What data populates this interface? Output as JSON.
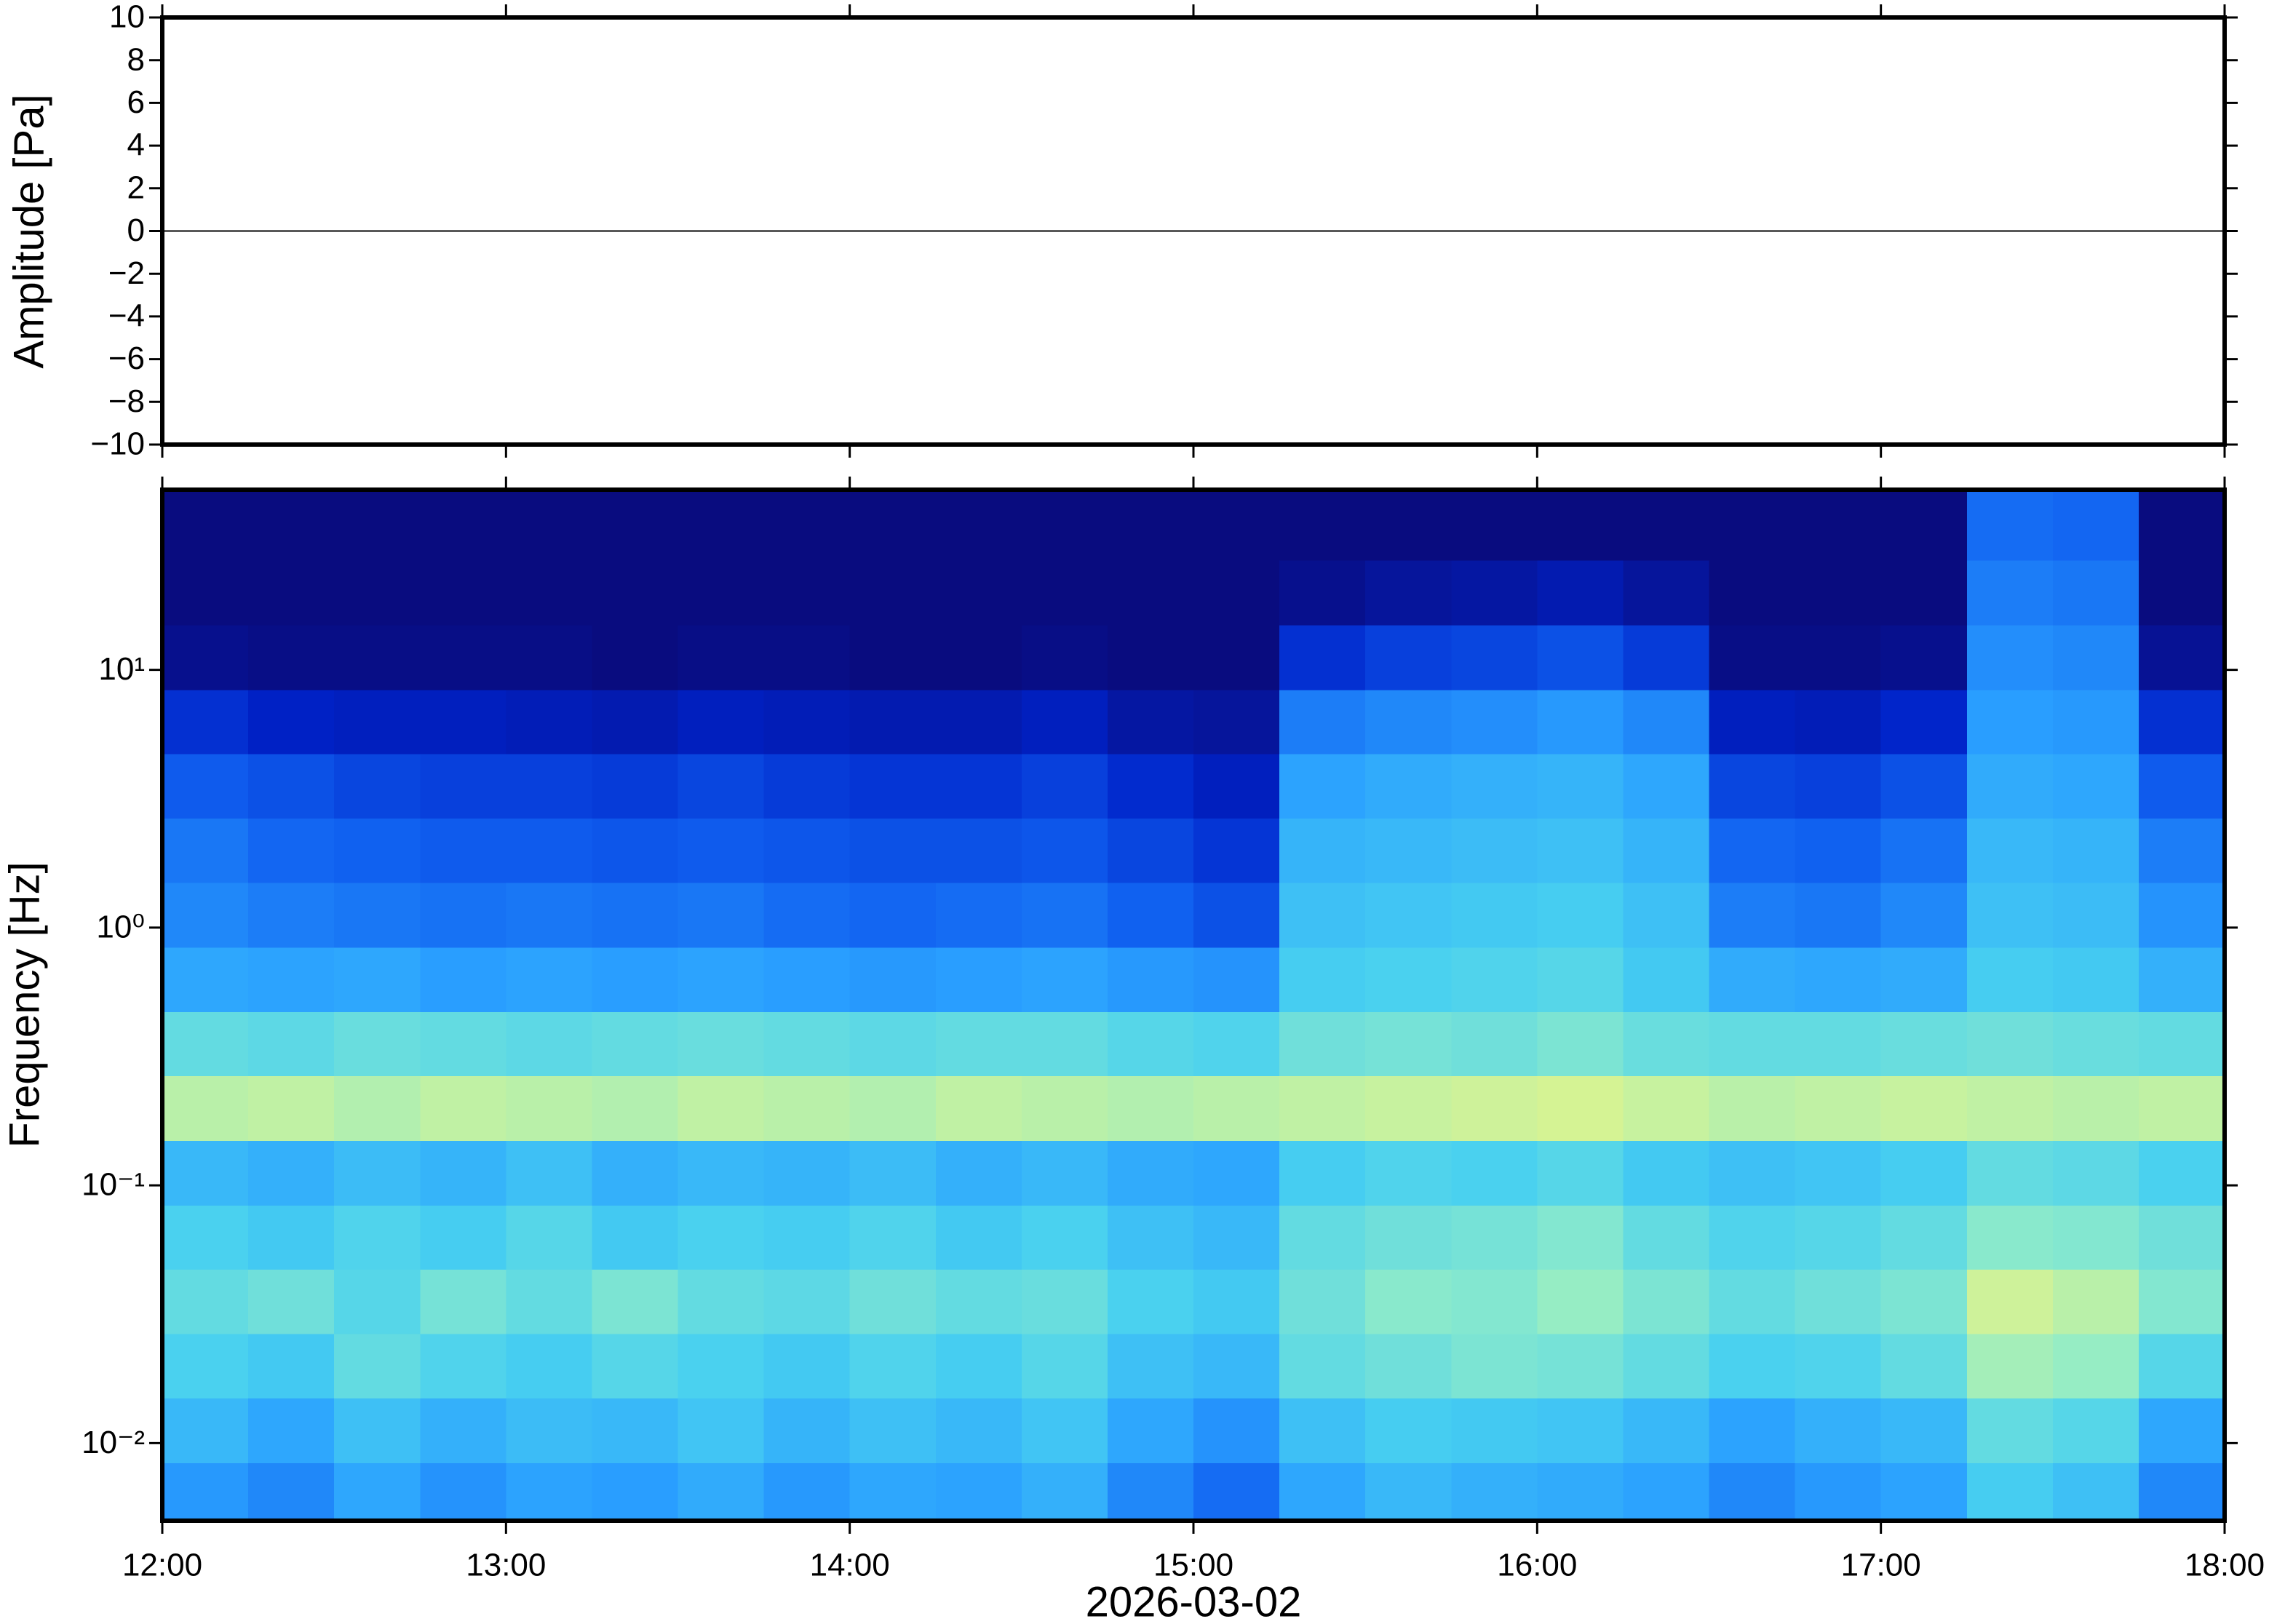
{
  "chart_data": [
    {
      "type": "line",
      "ylabel": "Amplitude [Pa]",
      "x": [
        12,
        12.25,
        12.5,
        12.75,
        13,
        13.25,
        13.5,
        13.75,
        14,
        14.25,
        14.5,
        14.75,
        15,
        15.25,
        15.5,
        15.75,
        16,
        16.25,
        16.5,
        16.75,
        17,
        17.25,
        17.5,
        17.75,
        18
      ],
      "values": [
        0,
        0,
        0,
        0,
        0,
        0,
        0,
        0,
        0,
        0,
        0,
        0,
        0,
        0,
        0,
        0,
        0,
        0,
        0,
        0,
        0,
        0,
        0,
        0,
        0
      ],
      "color": "#000000",
      "xlim": [
        12,
        18
      ],
      "xticks": [
        12,
        13,
        14,
        15,
        16,
        17,
        18
      ],
      "ylim": [
        -10,
        10
      ],
      "yticks": [
        {
          "value": -10,
          "label": "−10"
        },
        {
          "value": -8,
          "label": "−8"
        },
        {
          "value": -6,
          "label": "−6"
        },
        {
          "value": -4,
          "label": "−4"
        },
        {
          "value": -2,
          "label": "−2"
        },
        0,
        2,
        4,
        6,
        8,
        10
      ]
    },
    {
      "type": "heatmap",
      "ylabel": "Frequency [Hz]",
      "xlabel": "2026-03-02",
      "xlim": [
        12,
        18
      ],
      "xticks": [
        {
          "value": 12,
          "label": "12:00"
        },
        {
          "value": 13,
          "label": "13:00"
        },
        {
          "value": 14,
          "label": "14:00"
        },
        {
          "value": 15,
          "label": "15:00"
        },
        {
          "value": 16,
          "label": "16:00"
        },
        {
          "value": 17,
          "label": "17:00"
        },
        {
          "value": 18,
          "label": "18:00"
        }
      ],
      "ylim": [
        0.005,
        50
      ],
      "ylog": true,
      "yticks": [
        {
          "value": 0.01,
          "label": "10⁻²"
        },
        {
          "value": 0.1,
          "label": "10⁻¹"
        },
        {
          "value": 1,
          "label": "10⁰"
        },
        {
          "value": 10,
          "label": "10¹"
        }
      ],
      "x": [
        12.125,
        12.375,
        12.625,
        12.875,
        13.125,
        13.375,
        13.625,
        13.875,
        14.125,
        14.375,
        14.625,
        14.875,
        15.125,
        15.375,
        15.625,
        15.875,
        16.125,
        16.375,
        16.625,
        16.875,
        17.125,
        17.375,
        17.625,
        17.875
      ],
      "y": [
        0.0063,
        0.0112,
        0.02,
        0.0355,
        0.063,
        0.112,
        0.2,
        0.355,
        0.63,
        1.12,
        2,
        3.55,
        6.3,
        11.2,
        20,
        35.5
      ],
      "zlim": [
        0,
        0.8
      ],
      "colormap": [
        "#0a0a78",
        "#0022c8",
        "#1060f0",
        "#2aa0ff",
        "#48d0f0",
        "#90ecc8",
        "#e0f48c",
        "#f8d860"
      ],
      "z": [
        [
          0.33,
          0.3,
          0.36,
          0.32,
          0.35,
          0.34,
          0.37,
          0.33,
          0.36,
          0.35,
          0.38,
          0.3,
          0.25,
          0.36,
          0.4,
          0.38,
          0.37,
          0.35,
          0.3,
          0.33,
          0.35,
          0.45,
          0.42,
          0.3
        ],
        [
          0.4,
          0.36,
          0.42,
          0.38,
          0.41,
          0.4,
          0.43,
          0.39,
          0.42,
          0.4,
          0.43,
          0.36,
          0.32,
          0.42,
          0.45,
          0.44,
          0.43,
          0.4,
          0.35,
          0.38,
          0.4,
          0.5,
          0.48,
          0.36
        ],
        [
          0.46,
          0.44,
          0.5,
          0.47,
          0.45,
          0.48,
          0.46,
          0.44,
          0.47,
          0.45,
          0.48,
          0.42,
          0.4,
          0.5,
          0.52,
          0.54,
          0.53,
          0.5,
          0.46,
          0.47,
          0.5,
          0.6,
          0.58,
          0.48
        ],
        [
          0.5,
          0.52,
          0.48,
          0.53,
          0.5,
          0.54,
          0.5,
          0.49,
          0.52,
          0.5,
          0.51,
          0.46,
          0.44,
          0.52,
          0.56,
          0.55,
          0.58,
          0.54,
          0.5,
          0.52,
          0.54,
          0.66,
          0.63,
          0.55
        ],
        [
          0.46,
          0.44,
          0.47,
          0.45,
          0.48,
          0.44,
          0.46,
          0.45,
          0.47,
          0.44,
          0.46,
          0.42,
          0.4,
          0.5,
          0.52,
          0.53,
          0.55,
          0.5,
          0.47,
          0.48,
          0.5,
          0.56,
          0.55,
          0.52
        ],
        [
          0.4,
          0.38,
          0.41,
          0.39,
          0.42,
          0.38,
          0.4,
          0.39,
          0.41,
          0.38,
          0.4,
          0.37,
          0.36,
          0.45,
          0.47,
          0.46,
          0.48,
          0.44,
          0.42,
          0.43,
          0.45,
          0.5,
          0.49,
          0.46
        ],
        [
          0.63,
          0.64,
          0.62,
          0.64,
          0.63,
          0.62,
          0.64,
          0.63,
          0.62,
          0.64,
          0.63,
          0.62,
          0.63,
          0.64,
          0.65,
          0.66,
          0.67,
          0.65,
          0.63,
          0.64,
          0.65,
          0.64,
          0.63,
          0.64
        ],
        [
          0.5,
          0.49,
          0.51,
          0.5,
          0.49,
          0.5,
          0.51,
          0.5,
          0.49,
          0.5,
          0.5,
          0.48,
          0.47,
          0.52,
          0.53,
          0.52,
          0.54,
          0.51,
          0.5,
          0.5,
          0.51,
          0.52,
          0.51,
          0.5
        ],
        [
          0.36,
          0.35,
          0.36,
          0.34,
          0.35,
          0.34,
          0.35,
          0.34,
          0.33,
          0.34,
          0.35,
          0.33,
          0.32,
          0.45,
          0.46,
          0.47,
          0.48,
          0.44,
          0.37,
          0.36,
          0.37,
          0.45,
          0.44,
          0.38
        ],
        [
          0.3,
          0.28,
          0.27,
          0.26,
          0.27,
          0.26,
          0.27,
          0.25,
          0.24,
          0.25,
          0.26,
          0.23,
          0.2,
          0.42,
          0.43,
          0.44,
          0.45,
          0.42,
          0.28,
          0.27,
          0.3,
          0.42,
          0.41,
          0.32
        ],
        [
          0.27,
          0.24,
          0.23,
          0.22,
          0.22,
          0.21,
          0.22,
          0.21,
          0.2,
          0.2,
          0.21,
          0.18,
          0.15,
          0.39,
          0.4,
          0.41,
          0.42,
          0.39,
          0.24,
          0.23,
          0.26,
          0.4,
          0.39,
          0.28
        ],
        [
          0.22,
          0.2,
          0.18,
          0.17,
          0.17,
          0.16,
          0.18,
          0.16,
          0.15,
          0.15,
          0.17,
          0.13,
          0.1,
          0.35,
          0.37,
          0.38,
          0.39,
          0.36,
          0.18,
          0.17,
          0.2,
          0.37,
          0.36,
          0.22
        ],
        [
          0.14,
          0.11,
          0.1,
          0.1,
          0.09,
          0.08,
          0.1,
          0.09,
          0.08,
          0.08,
          0.1,
          0.06,
          0.05,
          0.28,
          0.3,
          0.31,
          0.33,
          0.3,
          0.1,
          0.09,
          0.12,
          0.34,
          0.33,
          0.14
        ],
        [
          0.03,
          0.02,
          0.02,
          0.02,
          0.02,
          0.01,
          0.02,
          0.02,
          0.01,
          0.01,
          0.02,
          0.01,
          0.01,
          0.14,
          0.17,
          0.18,
          0.2,
          0.16,
          0.02,
          0.02,
          0.03,
          0.31,
          0.3,
          0.04
        ],
        [
          0.01,
          0.01,
          0.01,
          0.01,
          0.01,
          0.01,
          0.01,
          0.01,
          0.01,
          0.01,
          0.01,
          0.01,
          0.01,
          0.03,
          0.05,
          0.06,
          0.08,
          0.05,
          0.01,
          0.01,
          0.01,
          0.28,
          0.27,
          0.01
        ],
        [
          0.01,
          0.01,
          0.01,
          0.01,
          0.01,
          0.01,
          0.01,
          0.01,
          0.01,
          0.01,
          0.01,
          0.01,
          0.01,
          0.01,
          0.01,
          0.01,
          0.01,
          0.01,
          0.01,
          0.01,
          0.01,
          0.25,
          0.24,
          0.01
        ]
      ]
    }
  ]
}
